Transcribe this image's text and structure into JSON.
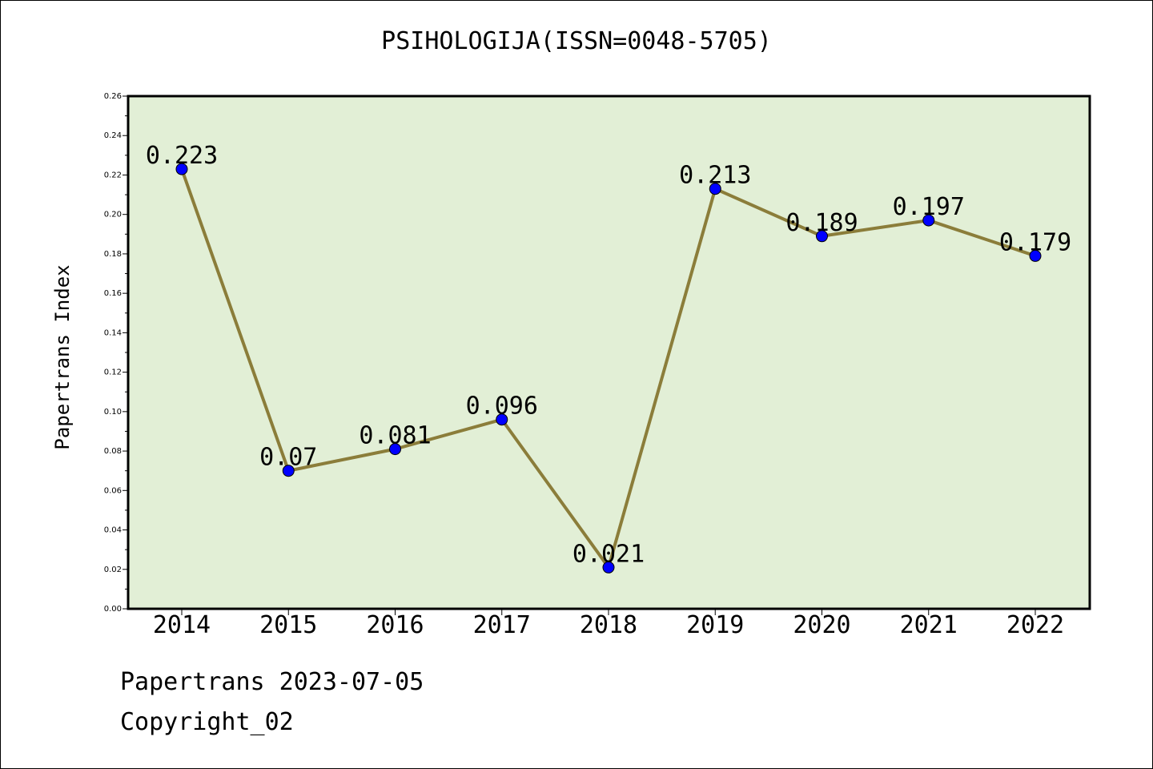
{
  "chart_data": {
    "type": "line",
    "title": "PSIHOLOGIJA(ISSN=0048-5705)",
    "xlabel": "",
    "ylabel": "Papertrans Index",
    "categories": [
      "2014",
      "2015",
      "2016",
      "2017",
      "2018",
      "2019",
      "2020",
      "2021",
      "2022"
    ],
    "series": [
      {
        "values": [
          0.223,
          0.07,
          0.081,
          0.096,
          0.021,
          0.213,
          0.189,
          0.197,
          0.179
        ],
        "data_labels": [
          "0.223",
          "0.07",
          "0.081",
          "0.096",
          "0.021",
          "0.213",
          "0.189",
          "0.197",
          "0.179"
        ]
      }
    ],
    "ylim": [
      0,
      0.26
    ],
    "yticks": [
      "0.00",
      "0.02",
      "0.04",
      "0.06",
      "0.08",
      "0.10",
      "0.12",
      "0.14",
      "0.16",
      "0.18",
      "0.20",
      "0.22",
      "0.24",
      "0.26"
    ],
    "grid": false,
    "legend": "none",
    "colors": {
      "plot_background": "#e2efd6",
      "line": "#8b7d3a",
      "marker": "#0000ff",
      "axis": "#000000"
    }
  },
  "footer": {
    "line1": "Papertrans 2023-07-05",
    "line2": "Copyright_02"
  }
}
